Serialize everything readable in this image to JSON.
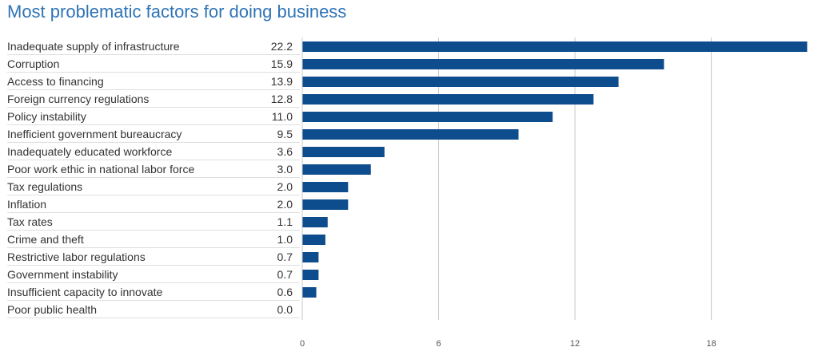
{
  "title": "Most problematic factors for doing business",
  "colors": {
    "bar": "#0d4c8d",
    "grid": "#c8c8c8",
    "title": "#2f74b5",
    "text": "#333333"
  },
  "chart_data": {
    "type": "bar",
    "orientation": "horizontal",
    "title": "Most problematic factors for doing business",
    "categories": [
      "Inadequate supply of infrastructure",
      "Corruption",
      "Access to financing",
      "Foreign currency regulations",
      "Policy instability",
      "Inefficient government bureaucracy",
      "Inadequately educated workforce",
      "Poor work ethic in national labor force",
      "Tax regulations",
      "Inflation",
      "Tax rates",
      "Crime and theft",
      "Restrictive labor regulations",
      "Government instability",
      "Insufficient capacity to innovate",
      "Poor public health"
    ],
    "values": [
      22.2,
      15.9,
      13.9,
      12.8,
      11.0,
      9.5,
      3.6,
      3.0,
      2.0,
      2.0,
      1.1,
      1.0,
      0.7,
      0.7,
      0.6,
      0.0
    ],
    "value_labels": [
      "22.2",
      "15.9",
      "13.9",
      "12.8",
      "11.0",
      "9.5",
      "3.6",
      "3.0",
      "2.0",
      "2.0",
      "1.1",
      "1.0",
      "0.7",
      "0.7",
      "0.6",
      "0.0"
    ],
    "xlim": [
      0,
      22.8
    ],
    "xticks": [
      0,
      6,
      12,
      18
    ],
    "xtick_labels": [
      "0",
      "6",
      "12",
      "18"
    ],
    "grid": true,
    "xlabel": "",
    "ylabel": ""
  }
}
